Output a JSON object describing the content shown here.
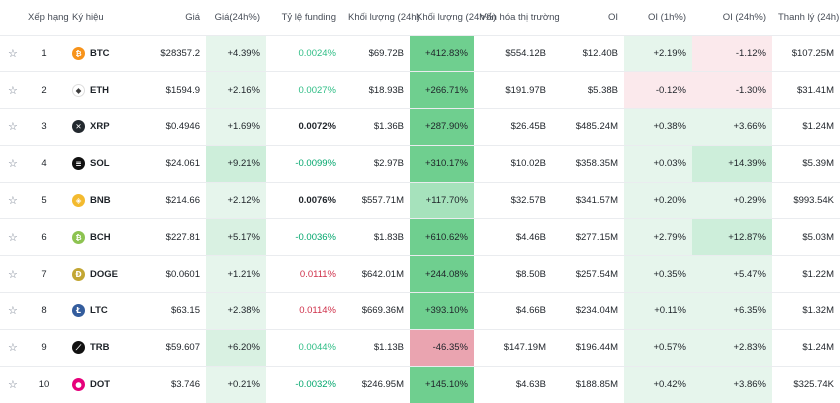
{
  "headers": {
    "rank": "Xếp hạng",
    "symbol": "Ký hiệu",
    "price": "Giá",
    "price_change": "Giá(24h%)",
    "funding": "Tỷ lệ funding",
    "volume": "Khối lượng (24h)",
    "volume_change": "Khối lượng (24h%)",
    "market_cap": "Vốn hóa thị trường",
    "oi": "OI",
    "oi_1h": "OI (1h%)",
    "oi_24h": "OI (24h%)",
    "liquidation": "Thanh lý (24h)"
  },
  "colors": {
    "up_light": "#e6f5ec",
    "up_mid": "#cdeeda",
    "up_strong": "#6fcf8f",
    "down_light": "#fbe9ec",
    "down_strong": "#eaa4b0",
    "funding_pos": "#2ebd85",
    "funding_neg": "#cf304a"
  },
  "rows": [
    {
      "star": "☆",
      "rank": "1",
      "symbol": "BTC",
      "icon": "btc-icon",
      "icon_color": "#f7931a",
      "icon_glyph": "₿",
      "price": "$28357.2",
      "price_change": "+4.39%",
      "price_bg": "#e6f5ec",
      "funding": "0.0024%",
      "funding_class": "fund-pos",
      "volume": "$69.72B",
      "volume_change": "+412.83%",
      "vol_bg": "#6fcf8f",
      "market_cap": "$554.12B",
      "oi": "$12.40B",
      "oi_1h": "+2.19%",
      "oi1_bg": "#e6f5ec",
      "oi_24h": "-1.12%",
      "oi24_bg": "#fbe9ec",
      "liquidation": "$107.25M"
    },
    {
      "star": "☆",
      "rank": "2",
      "symbol": "ETH",
      "icon": "eth-icon",
      "icon_color": "#ffffff",
      "icon_glyph": "◆",
      "price": "$1594.9",
      "price_change": "+2.16%",
      "price_bg": "#e6f5ec",
      "funding": "0.0027%",
      "funding_class": "fund-pos",
      "volume": "$18.93B",
      "volume_change": "+266.71%",
      "vol_bg": "#6fcf8f",
      "market_cap": "$191.97B",
      "oi": "$5.38B",
      "oi_1h": "-0.12%",
      "oi1_bg": "#fbe9ec",
      "oi_24h": "-1.30%",
      "oi24_bg": "#fbe9ec",
      "liquidation": "$31.41M"
    },
    {
      "star": "☆",
      "rank": "3",
      "symbol": "XRP",
      "icon": "xrp-icon",
      "icon_color": "#23292f",
      "icon_glyph": "✕",
      "price": "$0.4946",
      "price_change": "+1.69%",
      "price_bg": "#e6f5ec",
      "funding": "0.0072%",
      "funding_class": "fund-neu",
      "volume": "$1.36B",
      "volume_change": "+287.90%",
      "vol_bg": "#6fcf8f",
      "market_cap": "$26.45B",
      "oi": "$485.24M",
      "oi_1h": "+0.38%",
      "oi1_bg": "#e6f5ec",
      "oi_24h": "+3.66%",
      "oi24_bg": "#e6f5ec",
      "liquidation": "$1.24M"
    },
    {
      "star": "☆",
      "rank": "4",
      "symbol": "SOL",
      "icon": "sol-icon",
      "icon_color": "#111111",
      "icon_glyph": "≡",
      "price": "$24.061",
      "price_change": "+9.21%",
      "price_bg": "#cdeeda",
      "funding": "-0.0099%",
      "funding_class": "fund-neg-green",
      "volume": "$2.97B",
      "volume_change": "+310.17%",
      "vol_bg": "#6fcf8f",
      "market_cap": "$10.02B",
      "oi": "$358.35M",
      "oi_1h": "+0.03%",
      "oi1_bg": "#e6f5ec",
      "oi_24h": "+14.39%",
      "oi24_bg": "#cdeeda",
      "liquidation": "$5.39M"
    },
    {
      "star": "☆",
      "rank": "5",
      "symbol": "BNB",
      "icon": "bnb-icon",
      "icon_color": "#f3ba2f",
      "icon_glyph": "◈",
      "price": "$214.66",
      "price_change": "+2.12%",
      "price_bg": "#e6f5ec",
      "funding": "0.0076%",
      "funding_class": "fund-neu",
      "volume": "$557.71M",
      "volume_change": "+117.70%",
      "vol_bg": "#a6e2bc",
      "market_cap": "$32.57B",
      "oi": "$341.57M",
      "oi_1h": "+0.20%",
      "oi1_bg": "#e6f5ec",
      "oi_24h": "+0.29%",
      "oi24_bg": "#e6f5ec",
      "liquidation": "$993.54K"
    },
    {
      "star": "☆",
      "rank": "6",
      "symbol": "BCH",
      "icon": "bch-icon",
      "icon_color": "#8dc351",
      "icon_glyph": "₿",
      "price": "$227.81",
      "price_change": "+5.17%",
      "price_bg": "#d9f1e2",
      "funding": "-0.0036%",
      "funding_class": "fund-neg-green",
      "volume": "$1.83B",
      "volume_change": "+610.62%",
      "vol_bg": "#6fcf8f",
      "market_cap": "$4.46B",
      "oi": "$277.15M",
      "oi_1h": "+2.79%",
      "oi1_bg": "#e6f5ec",
      "oi_24h": "+12.87%",
      "oi24_bg": "#cdeeda",
      "liquidation": "$5.03M"
    },
    {
      "star": "☆",
      "rank": "7",
      "symbol": "DOGE",
      "icon": "doge-icon",
      "icon_color": "#c2a633",
      "icon_glyph": "Ð",
      "price": "$0.0601",
      "price_change": "+1.21%",
      "price_bg": "#e6f5ec",
      "funding": "0.0111%",
      "funding_class": "fund-neg-red",
      "volume": "$642.01M",
      "volume_change": "+244.08%",
      "vol_bg": "#6fcf8f",
      "market_cap": "$8.50B",
      "oi": "$257.54M",
      "oi_1h": "+0.35%",
      "oi1_bg": "#e6f5ec",
      "oi_24h": "+5.47%",
      "oi24_bg": "#e6f5ec",
      "liquidation": "$1.22M"
    },
    {
      "star": "☆",
      "rank": "8",
      "symbol": "LTC",
      "icon": "ltc-icon",
      "icon_color": "#345d9d",
      "icon_glyph": "Ł",
      "price": "$63.15",
      "price_change": "+2.38%",
      "price_bg": "#e6f5ec",
      "funding": "0.0114%",
      "funding_class": "fund-neg-red",
      "volume": "$669.36M",
      "volume_change": "+393.10%",
      "vol_bg": "#6fcf8f",
      "market_cap": "$4.66B",
      "oi": "$234.04M",
      "oi_1h": "+0.11%",
      "oi1_bg": "#e6f5ec",
      "oi_24h": "+6.35%",
      "oi24_bg": "#e6f5ec",
      "liquidation": "$1.32M"
    },
    {
      "star": "☆",
      "rank": "9",
      "symbol": "TRB",
      "icon": "trb-icon",
      "icon_color": "#111111",
      "icon_glyph": "⟋",
      "price": "$59.607",
      "price_change": "+6.20%",
      "price_bg": "#d9f1e2",
      "funding": "0.0044%",
      "funding_class": "fund-pos",
      "volume": "$1.13B",
      "volume_change": "-46.35%",
      "vol_bg": "#eaa4b0",
      "market_cap": "$147.19M",
      "oi": "$196.44M",
      "oi_1h": "+0.57%",
      "oi1_bg": "#e6f5ec",
      "oi_24h": "+2.83%",
      "oi24_bg": "#e6f5ec",
      "liquidation": "$1.24M"
    },
    {
      "star": "☆",
      "rank": "10",
      "symbol": "DOT",
      "icon": "dot-icon",
      "icon_color": "#e6007a",
      "icon_glyph": "●",
      "price": "$3.746",
      "price_change": "+0.21%",
      "price_bg": "#e6f5ec",
      "funding": "-0.0032%",
      "funding_class": "fund-neg-green",
      "volume": "$246.95M",
      "volume_change": "+145.10%",
      "vol_bg": "#6fcf8f",
      "market_cap": "$4.63B",
      "oi": "$188.85M",
      "oi_1h": "+0.42%",
      "oi1_bg": "#e6f5ec",
      "oi_24h": "+3.86%",
      "oi24_bg": "#e6f5ec",
      "liquidation": "$325.74K"
    }
  ]
}
